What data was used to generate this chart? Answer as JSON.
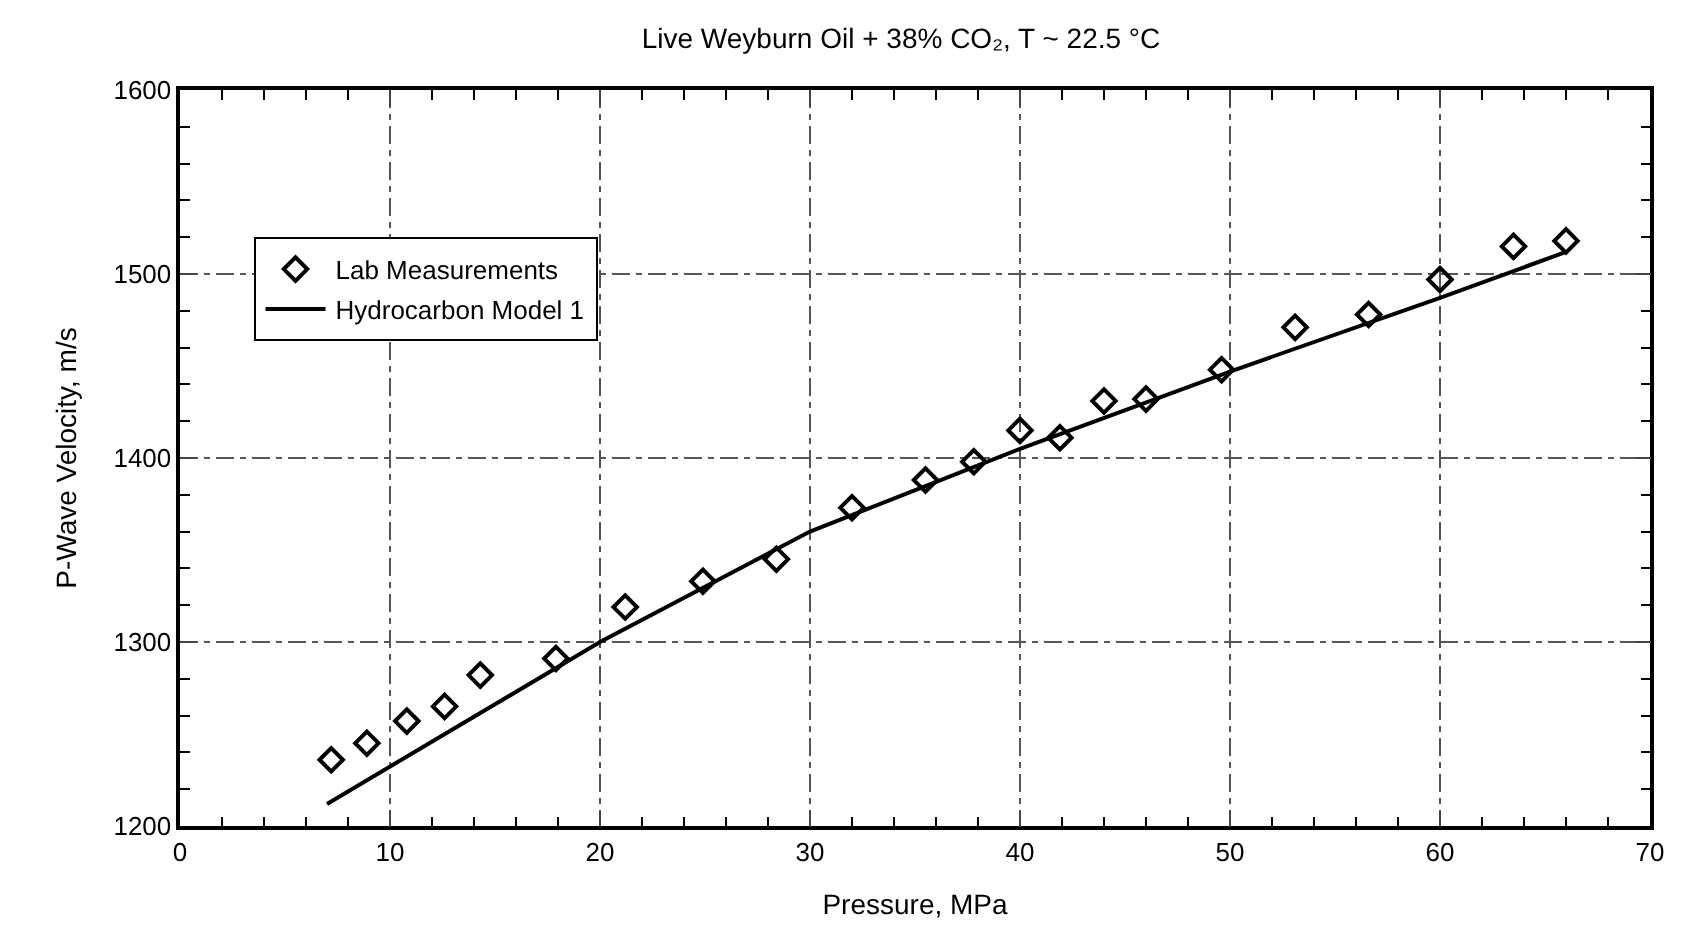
{
  "chart_data": {
    "type": "scatter",
    "title": "Live Weyburn Oil + 38% CO₂, T ~ 22.5 °C",
    "xlabel": "Pressure, MPa",
    "ylabel": "P-Wave Velocity, m/s",
    "xlim": [
      0,
      70
    ],
    "xticks": [
      0,
      10,
      20,
      30,
      40,
      50,
      60,
      70
    ],
    "ylim": [
      1200,
      1600
    ],
    "yticks": [
      1200,
      1300,
      1400,
      1500,
      1600
    ],
    "grid": true,
    "legend": "top left",
    "series": [
      {
        "name": "Lab Measurements",
        "marker": "diamond",
        "color": "#000000",
        "x": [
          7.2,
          8.9,
          10.8,
          12.6,
          14.3,
          17.9,
          21.2,
          24.9,
          28.4,
          32.0,
          35.5,
          37.8,
          40.0,
          41.9,
          44.0,
          46.0,
          49.6,
          53.1,
          56.6,
          60.0,
          63.5,
          66.0
        ],
        "values": [
          1236,
          1245,
          1257,
          1265,
          1282,
          1291,
          1319,
          1333,
          1345,
          1373,
          1388,
          1398,
          1415,
          1411,
          1431,
          1432,
          1448,
          1471,
          1478,
          1497,
          1515,
          1518
        ]
      },
      {
        "name": "Hydrocarbon Model 1",
        "type": "line",
        "line_style": "solid",
        "color": "#000000",
        "x": [
          7,
          20,
          30,
          40,
          50,
          60,
          66
        ],
        "values": [
          1212,
          1300,
          1360,
          1405,
          1447,
          1487,
          1512
        ]
      }
    ]
  }
}
